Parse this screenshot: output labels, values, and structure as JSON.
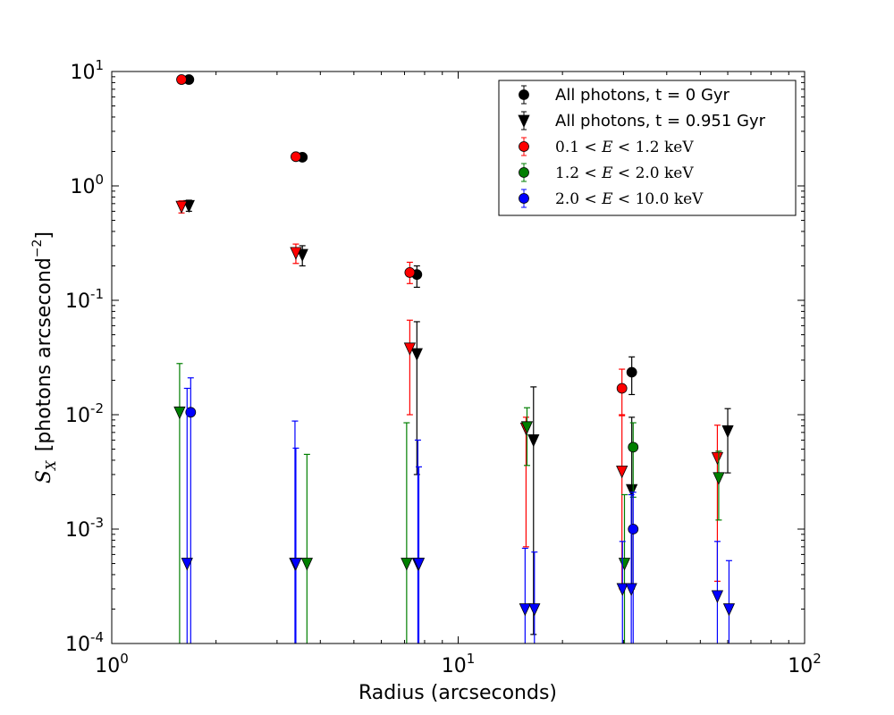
{
  "chart_data": {
    "type": "scatter",
    "xscale": "log",
    "yscale": "log",
    "xlim": [
      1,
      100
    ],
    "ylim": [
      0.0001,
      10
    ],
    "xlabel": "Radius (arcseconds)",
    "ylabel": "S_X  [photons arcsecond^-2]",
    "ylabel_parts": {
      "symbol": "S",
      "subscript": "X",
      "text": "[photons arcsecond",
      "exponent": "−2",
      "close": "]"
    },
    "x_ticks": [
      {
        "value": 1,
        "base": "10",
        "exp": "0"
      },
      {
        "value": 10,
        "base": "10",
        "exp": "1"
      },
      {
        "value": 100,
        "base": "10",
        "exp": "2"
      }
    ],
    "y_ticks": [
      {
        "value": 0.0001,
        "base": "10",
        "exp": "-4"
      },
      {
        "value": 0.001,
        "base": "10",
        "exp": "-3"
      },
      {
        "value": 0.01,
        "base": "10",
        "exp": "-2"
      },
      {
        "value": 0.1,
        "base": "10",
        "exp": "-1"
      },
      {
        "value": 1,
        "base": "10",
        "exp": "0"
      },
      {
        "value": 10,
        "base": "10",
        "exp": "1"
      }
    ],
    "legend_position": "top-right",
    "series": [
      {
        "name": "all-t0",
        "label": "All photons, t = 0 Gyr",
        "color": "#000000",
        "marker": "circle",
        "points": [
          {
            "x": 1.67,
            "y": 8.5,
            "lo": 8.2,
            "hi": 8.8
          },
          {
            "x": 3.55,
            "y": 1.78,
            "lo": 1.72,
            "hi": 1.84
          },
          {
            "x": 7.6,
            "y": 0.168,
            "lo": 0.13,
            "hi": 0.2
          },
          {
            "x": 31.7,
            "y": 0.0235,
            "lo": 0.015,
            "hi": 0.032
          }
        ]
      },
      {
        "name": "all-t0951",
        "label": "All photons, t = 0.951 Gyr",
        "color": "#000000",
        "marker": "triangle-down",
        "points": [
          {
            "x": 1.67,
            "y": 0.67,
            "lo": 0.6,
            "hi": 0.75
          },
          {
            "x": 3.55,
            "y": 0.25,
            "lo": 0.2,
            "hi": 0.3
          },
          {
            "x": 7.6,
            "y": 0.034,
            "lo": 0.003,
            "hi": 0.065
          },
          {
            "x": 16.5,
            "y": 0.006,
            "lo": 0.00012,
            "hi": 0.0175
          },
          {
            "x": 31.7,
            "y": 0.0022,
            "lo": 0.0003,
            "hi": 0.0095
          },
          {
            "x": 60,
            "y": 0.0072,
            "lo": 0.0031,
            "hi": 0.0113
          }
        ]
      },
      {
        "name": "soft-band",
        "label": "0.1 < E < 1.2 keV",
        "label_parts": {
          "lo": "0.1",
          "hi": "1.2",
          "unit": "keV"
        },
        "color": "#ff0000",
        "marker": "circle",
        "points": [
          {
            "x": 1.59,
            "y": 8.5,
            "lo": 8.2,
            "hi": 8.8
          },
          {
            "x": 3.4,
            "y": 1.8,
            "lo": 1.75,
            "hi": 1.85
          },
          {
            "x": 7.25,
            "y": 0.175,
            "lo": 0.14,
            "hi": 0.215
          },
          {
            "x": 29.7,
            "y": 0.017,
            "lo": 0.01,
            "hi": 0.025
          }
        ]
      },
      {
        "name": "soft-band-t0951",
        "label": "",
        "color": "#ff0000",
        "marker": "triangle-down",
        "points": [
          {
            "x": 1.59,
            "y": 0.66,
            "lo": 0.58,
            "hi": 0.74
          },
          {
            "x": 3.4,
            "y": 0.26,
            "lo": 0.21,
            "hi": 0.31
          },
          {
            "x": 7.25,
            "y": 0.038,
            "lo": 0.01,
            "hi": 0.067
          },
          {
            "x": 15.7,
            "y": 0.0076,
            "lo": 0.0007,
            "hi": 0.0095
          },
          {
            "x": 29.7,
            "y": 0.0032,
            "lo": 0.0003,
            "hi": 0.0098
          },
          {
            "x": 56,
            "y": 0.0042,
            "lo": 0.00035,
            "hi": 0.0081
          }
        ]
      },
      {
        "name": "mid-band",
        "label": "1.2 < E < 2.0 keV",
        "label_parts": {
          "lo": "1.2",
          "hi": "2.0",
          "unit": "keV"
        },
        "color": "#007f00",
        "marker": "circle",
        "points": [
          {
            "x": 32,
            "y": 0.0052,
            "lo": 0.0019,
            "hi": 0.0085
          }
        ]
      },
      {
        "name": "mid-band-t0951",
        "label": "",
        "color": "#007f00",
        "marker": "triangle-down",
        "points": [
          {
            "x": 1.57,
            "y": 0.0105,
            "lo": 0.0001,
            "hi": 0.028
          },
          {
            "x": 3.66,
            "y": 0.0005,
            "lo": 0.0001,
            "hi": 0.0045
          },
          {
            "x": 7.1,
            "y": 0.0005,
            "lo": 0.0001,
            "hi": 0.0085
          },
          {
            "x": 15.8,
            "y": 0.0078,
            "lo": 0.0036,
            "hi": 0.0115
          },
          {
            "x": 30.2,
            "y": 0.0005,
            "lo": 0.0001,
            "hi": 0.002
          },
          {
            "x": 56.5,
            "y": 0.0028,
            "lo": 0.0012,
            "hi": 0.0048
          }
        ]
      },
      {
        "name": "hard-band",
        "label": "2.0 < E < 10.0 keV",
        "label_parts": {
          "lo": "2.0",
          "hi": "10.0",
          "unit": "keV"
        },
        "color": "#0000ff",
        "marker": "circle",
        "points": [
          {
            "x": 1.69,
            "y": 0.0105,
            "lo": 0.0001,
            "hi": 0.021
          },
          {
            "x": 32,
            "y": 0.001,
            "lo": 0.0001,
            "hi": 0.0021
          }
        ]
      },
      {
        "name": "hard-band-t0951",
        "label": "",
        "color": "#0000ff",
        "marker": "triangle-down",
        "points": [
          {
            "x": 1.65,
            "y": 0.0005,
            "lo": 0.0001,
            "hi": 0.017
          },
          {
            "x": 3.38,
            "y": 0.0005,
            "lo": 0.0001,
            "hi": 0.0088
          },
          {
            "x": 3.4,
            "y": 0.0005,
            "lo": 0.0001,
            "hi": 0.0051
          },
          {
            "x": 7.65,
            "y": 0.0005,
            "lo": 0.0001,
            "hi": 0.006
          },
          {
            "x": 7.7,
            "y": 0.0005,
            "lo": 0.0001,
            "hi": 0.0035
          },
          {
            "x": 15.6,
            "y": 0.0002,
            "lo": 0.0001,
            "hi": 0.00068
          },
          {
            "x": 16.6,
            "y": 0.0002,
            "lo": 0.0001,
            "hi": 0.00063
          },
          {
            "x": 29.8,
            "y": 0.0003,
            "lo": 0.0001,
            "hi": 0.00078
          },
          {
            "x": 31.6,
            "y": 0.0003,
            "lo": 0.0001,
            "hi": 0.002
          },
          {
            "x": 56,
            "y": 0.00026,
            "lo": 0.0001,
            "hi": 0.00078
          },
          {
            "x": 60.5,
            "y": 0.0002,
            "lo": 0.0001,
            "hi": 0.00053
          }
        ]
      }
    ]
  }
}
